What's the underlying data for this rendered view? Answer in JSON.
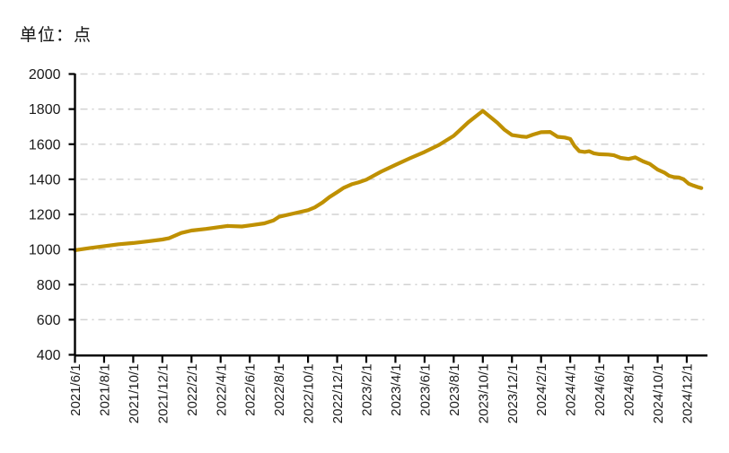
{
  "title": {
    "text": "单位：点"
  },
  "colors": {
    "line": "#BF9000",
    "gridline": "#D2D2D2",
    "axis": "#000000",
    "tick_label": "#1a1a1a",
    "background": "#ffffff"
  },
  "chart_data": {
    "type": "line",
    "title": "单位：点",
    "xlabel": "",
    "ylabel": "点",
    "ylim": [
      400,
      2000
    ],
    "ytick_step": 200,
    "grid": "horizontal, dash-dot, light gray",
    "legend": "none",
    "yticks": [
      2000,
      1800,
      1600,
      1400,
      1200,
      1000,
      800,
      600,
      400
    ],
    "xticks": [
      "2021/6/1",
      "2021/8/1",
      "2021/10/1",
      "2021/12/1",
      "2022/2/1",
      "2022/4/1",
      "2022/6/1",
      "2022/8/1",
      "2022/10/1",
      "2022/12/1",
      "2023/2/1",
      "2023/4/1",
      "2023/6/1",
      "2023/8/1",
      "2023/10/1",
      "2023/12/1",
      "2024/2/1",
      "2024/4/1",
      "2024/6/1",
      "2024/8/1",
      "2024/10/1",
      "2024/12/1"
    ],
    "series": [
      {
        "points": [
          [
            "2021/6/1",
            996
          ],
          [
            "2021/7/1",
            1008
          ],
          [
            "2021/8/1",
            1019
          ],
          [
            "2021/9/1",
            1030
          ],
          [
            "2021/10/1",
            1037
          ],
          [
            "2021/11/1",
            1046
          ],
          [
            "2021/12/1",
            1057
          ],
          [
            "2021/12/15",
            1064
          ],
          [
            "2022/1/10",
            1094
          ],
          [
            "2022/2/1",
            1108
          ],
          [
            "2022/3/1",
            1117
          ],
          [
            "2022/4/1",
            1129
          ],
          [
            "2022/4/15",
            1134
          ],
          [
            "2022/5/15",
            1131
          ],
          [
            "2022/6/1",
            1137
          ],
          [
            "2022/7/1",
            1149
          ],
          [
            "2022/7/20",
            1166
          ],
          [
            "2022/8/1",
            1186
          ],
          [
            "2022/9/1",
            1205
          ],
          [
            "2022/10/1",
            1224
          ],
          [
            "2022/10/15",
            1240
          ],
          [
            "2022/11/1",
            1268
          ],
          [
            "2022/11/15",
            1298
          ],
          [
            "2022/12/1",
            1327
          ],
          [
            "2022/12/15",
            1352
          ],
          [
            "2023/1/1",
            1372
          ],
          [
            "2023/1/15",
            1382
          ],
          [
            "2023/2/1",
            1398
          ],
          [
            "2023/3/1",
            1443
          ],
          [
            "2023/4/1",
            1482
          ],
          [
            "2023/5/1",
            1520
          ],
          [
            "2023/6/1",
            1556
          ],
          [
            "2023/7/1",
            1596
          ],
          [
            "2023/8/1",
            1648
          ],
          [
            "2023/9/1",
            1725
          ],
          [
            "2023/10/1",
            1790
          ],
          [
            "2023/10/15",
            1758
          ],
          [
            "2023/11/1",
            1722
          ],
          [
            "2023/11/15",
            1684
          ],
          [
            "2023/12/1",
            1652
          ],
          [
            "2023/12/20",
            1644
          ],
          [
            "2024/1/1",
            1641
          ],
          [
            "2024/1/15",
            1655
          ],
          [
            "2024/2/1",
            1668
          ],
          [
            "2024/2/20",
            1670
          ],
          [
            "2024/3/5",
            1642
          ],
          [
            "2024/3/20",
            1638
          ],
          [
            "2024/4/1",
            1630
          ],
          [
            "2024/4/10",
            1590
          ],
          [
            "2024/4/20",
            1560
          ],
          [
            "2024/5/1",
            1556
          ],
          [
            "2024/5/10",
            1560
          ],
          [
            "2024/5/20",
            1548
          ],
          [
            "2024/6/1",
            1543
          ],
          [
            "2024/6/20",
            1541
          ],
          [
            "2024/7/1",
            1537
          ],
          [
            "2024/7/15",
            1522
          ],
          [
            "2024/8/1",
            1516
          ],
          [
            "2024/8/15",
            1525
          ],
          [
            "2024/9/1",
            1502
          ],
          [
            "2024/9/15",
            1488
          ],
          [
            "2024/10/1",
            1455
          ],
          [
            "2024/10/15",
            1438
          ],
          [
            "2024/10/25",
            1420
          ],
          [
            "2024/11/5",
            1412
          ],
          [
            "2024/11/15",
            1410
          ],
          [
            "2024/11/25",
            1400
          ],
          [
            "2024/12/5",
            1375
          ],
          [
            "2024/12/15",
            1364
          ],
          [
            "2024/12/25",
            1355
          ],
          [
            "2025/1/1",
            1350
          ]
        ]
      }
    ]
  }
}
